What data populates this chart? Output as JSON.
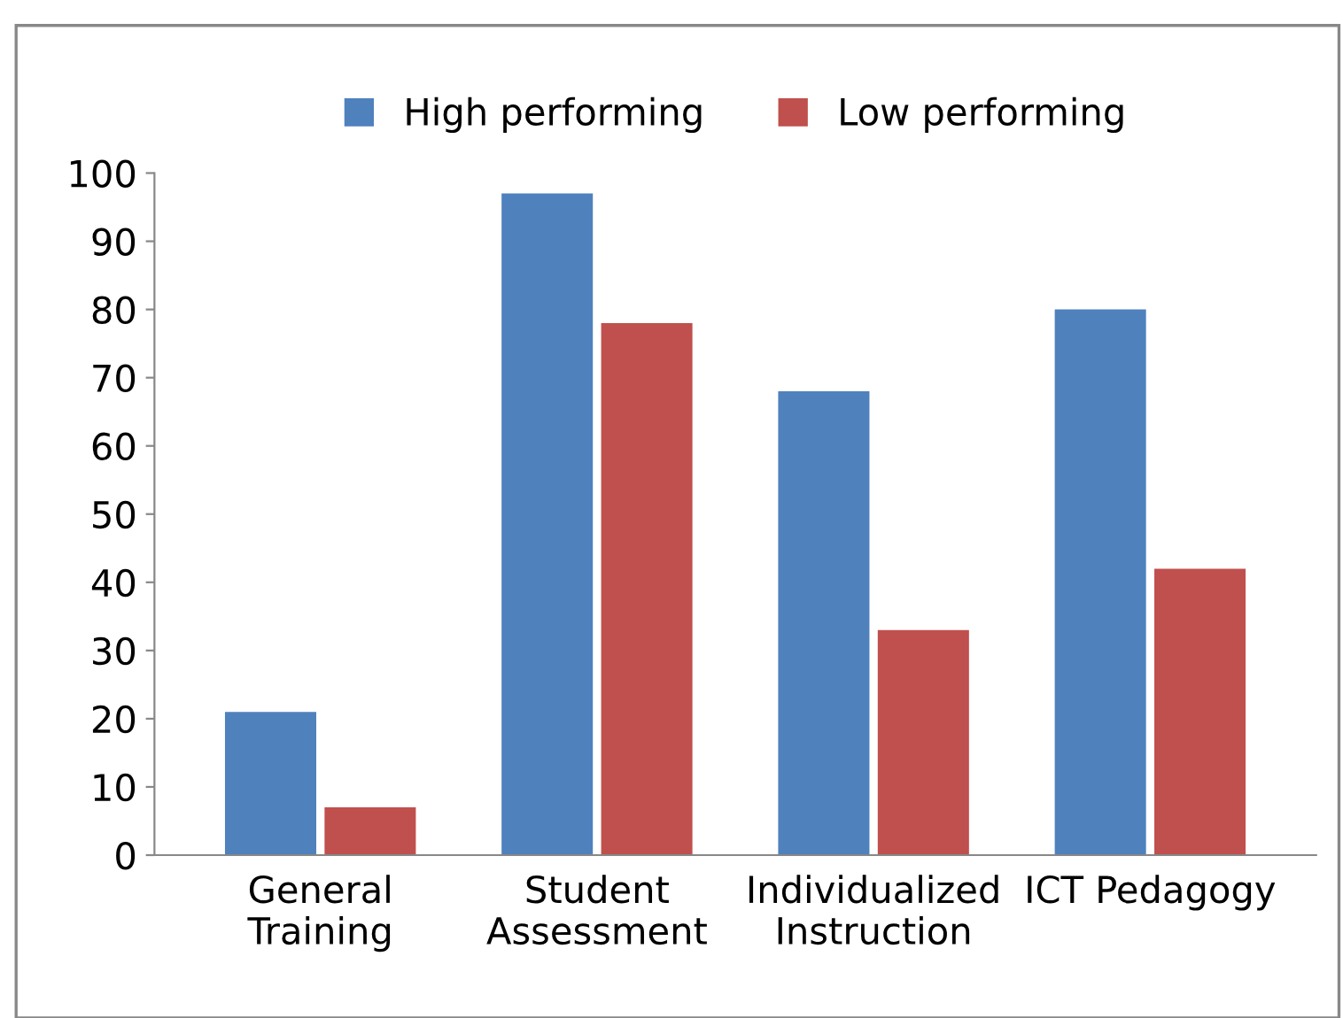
{
  "chart_data": {
    "type": "bar",
    "categories": [
      "General\nTraining",
      "Student\nAssessment",
      "Individualized\nInstruction",
      "ICT Pedagogy"
    ],
    "series": [
      {
        "name": "High performing",
        "color": "#4f81bd",
        "values": [
          21,
          97,
          68,
          80
        ]
      },
      {
        "name": "Low performing",
        "color": "#c0504d",
        "values": [
          7,
          78,
          33,
          42
        ]
      }
    ],
    "ylim": [
      0,
      100
    ],
    "yticks": [
      0,
      10,
      20,
      30,
      40,
      50,
      60,
      70,
      80,
      90,
      100
    ],
    "grid": false,
    "legend": "top"
  }
}
